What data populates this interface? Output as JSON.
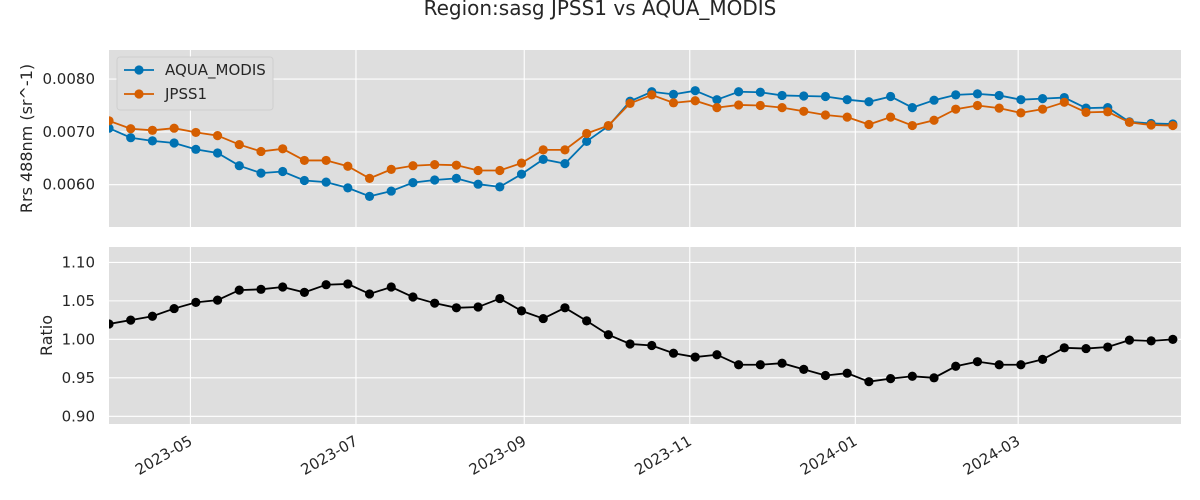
{
  "chart_data": [
    {
      "type": "line",
      "title": "Region:sasg JPSS1 vs AQUA_MODIS",
      "ylabel": "Rrs 488nm (sr^-1)",
      "xlabel": "",
      "xlim": [
        "2023-04-01",
        "2024-04-30"
      ],
      "ylim": [
        0.0052,
        0.00855
      ],
      "yticks": [
        "0.0060",
        "0.0070",
        "0.0080"
      ],
      "grid": true,
      "legend": "top-left",
      "x": [
        "2023-04-01",
        "2023-04-09",
        "2023-04-17",
        "2023-04-25",
        "2023-05-03",
        "2023-05-11",
        "2023-05-19",
        "2023-05-27",
        "2023-06-04",
        "2023-06-12",
        "2023-06-20",
        "2023-06-28",
        "2023-07-06",
        "2023-07-14",
        "2023-07-22",
        "2023-07-30",
        "2023-08-07",
        "2023-08-15",
        "2023-08-23",
        "2023-08-31",
        "2023-09-08",
        "2023-09-16",
        "2023-09-24",
        "2023-10-02",
        "2023-10-10",
        "2023-10-18",
        "2023-10-26",
        "2023-11-03",
        "2023-11-11",
        "2023-11-19",
        "2023-11-27",
        "2023-12-05",
        "2023-12-13",
        "2023-12-21",
        "2023-12-29",
        "2024-01-06",
        "2024-01-14",
        "2024-01-22",
        "2024-01-30",
        "2024-02-07",
        "2024-02-15",
        "2024-02-23",
        "2024-03-02",
        "2024-03-10",
        "2024-03-18",
        "2024-03-26",
        "2024-04-03",
        "2024-04-11",
        "2024-04-19",
        "2024-04-27"
      ],
      "series": [
        {
          "name": "AQUA_MODIS",
          "color": "#0072b2",
          "values": [
            0.00707,
            0.00689,
            0.00683,
            0.00679,
            0.00667,
            0.0066,
            0.00636,
            0.00622,
            0.00625,
            0.00608,
            0.00605,
            0.00594,
            0.00578,
            0.00588,
            0.00604,
            0.00609,
            0.00612,
            0.00601,
            0.00596,
            0.0062,
            0.00648,
            0.0064,
            0.00682,
            0.00711,
            0.00758,
            0.00776,
            0.00771,
            0.00778,
            0.00761,
            0.00776,
            0.00775,
            0.00769,
            0.00768,
            0.00767,
            0.00761,
            0.00757,
            0.00767,
            0.00746,
            0.0076,
            0.0077,
            0.00772,
            0.00769,
            0.00761,
            0.00763,
            0.00765,
            0.00745,
            0.00746,
            0.00719,
            0.00716,
            0.00715
          ]
        },
        {
          "name": "JPSS1",
          "color": "#d55e00",
          "values": [
            0.00721,
            0.00706,
            0.00703,
            0.00707,
            0.00699,
            0.00693,
            0.00676,
            0.00663,
            0.00668,
            0.00646,
            0.00646,
            0.00635,
            0.00612,
            0.00629,
            0.00636,
            0.00638,
            0.00637,
            0.00627,
            0.00627,
            0.00641,
            0.00666,
            0.00666,
            0.00697,
            0.00712,
            0.00754,
            0.0077,
            0.00755,
            0.00759,
            0.00746,
            0.00751,
            0.0075,
            0.00746,
            0.00739,
            0.00732,
            0.00728,
            0.00714,
            0.00728,
            0.00712,
            0.00722,
            0.00743,
            0.0075,
            0.00745,
            0.00736,
            0.00743,
            0.00756,
            0.00737,
            0.00738,
            0.00718,
            0.00713,
            0.00712
          ]
        }
      ]
    },
    {
      "type": "line",
      "title": "",
      "ylabel": "Ratio",
      "xlabel": "",
      "xlim": [
        "2023-04-01",
        "2024-04-30"
      ],
      "ylim": [
        0.89,
        1.12
      ],
      "yticks": [
        "0.90",
        "0.95",
        "1.00",
        "1.05",
        "1.10"
      ],
      "xticks": [
        "2023-05",
        "2023-07",
        "2023-09",
        "2023-11",
        "2024-01",
        "2024-03"
      ],
      "grid": true,
      "x": [
        "2023-04-01",
        "2023-04-09",
        "2023-04-17",
        "2023-04-25",
        "2023-05-03",
        "2023-05-11",
        "2023-05-19",
        "2023-05-27",
        "2023-06-04",
        "2023-06-12",
        "2023-06-20",
        "2023-06-28",
        "2023-07-06",
        "2023-07-14",
        "2023-07-22",
        "2023-07-30",
        "2023-08-07",
        "2023-08-15",
        "2023-08-23",
        "2023-08-31",
        "2023-09-08",
        "2023-09-16",
        "2023-09-24",
        "2023-10-02",
        "2023-10-10",
        "2023-10-18",
        "2023-10-26",
        "2023-11-03",
        "2023-11-11",
        "2023-11-19",
        "2023-11-27",
        "2023-12-05",
        "2023-12-13",
        "2023-12-21",
        "2023-12-29",
        "2024-01-06",
        "2024-01-14",
        "2024-01-22",
        "2024-01-30",
        "2024-02-07",
        "2024-02-15",
        "2024-02-23",
        "2024-03-02",
        "2024-03-10",
        "2024-03-18",
        "2024-03-26",
        "2024-04-03",
        "2024-04-11",
        "2024-04-19",
        "2024-04-27"
      ],
      "series": [
        {
          "color": "#000000",
          "values": [
            1.02,
            1.025,
            1.03,
            1.04,
            1.048,
            1.051,
            1.064,
            1.065,
            1.068,
            1.061,
            1.071,
            1.072,
            1.059,
            1.068,
            1.055,
            1.047,
            1.041,
            1.042,
            1.053,
            1.037,
            1.027,
            1.041,
            1.024,
            1.006,
            0.994,
            0.992,
            0.982,
            0.977,
            0.98,
            0.967,
            0.967,
            0.969,
            0.961,
            0.953,
            0.956,
            0.945,
            0.949,
            0.952,
            0.95,
            0.965,
            0.971,
            0.967,
            0.967,
            0.974,
            0.989,
            0.988,
            0.99,
            0.999,
            0.998,
            1.0
          ]
        }
      ]
    }
  ]
}
